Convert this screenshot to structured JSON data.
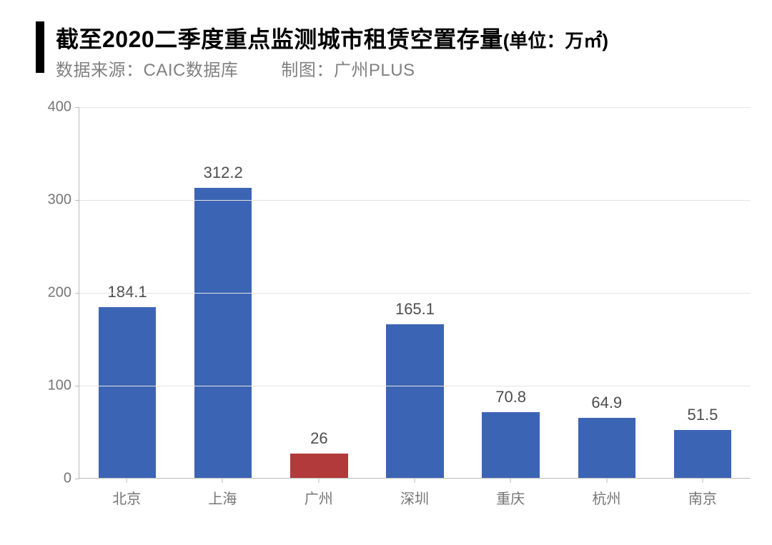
{
  "header": {
    "title_main": "截至2020二季度重点监测城市租赁空置存量",
    "title_unit": "(单位：万㎡)",
    "subtitle_source_label": "数据来源：",
    "subtitle_source_value": "CAIC数据库",
    "subtitle_credit_label": "制图：",
    "subtitle_credit_value": "广州PLUS",
    "bar_color": "#000000",
    "title_fontsize": 32,
    "subtitle_fontsize": 24,
    "subtitle_color": "#808080"
  },
  "chart": {
    "type": "bar",
    "categories": [
      "北京",
      "上海",
      "广州",
      "深圳",
      "重庆",
      "杭州",
      "南京"
    ],
    "values": [
      184.1,
      312.2,
      26,
      165.1,
      70.8,
      64.9,
      51.5
    ],
    "bar_colors": [
      "#3c64b4",
      "#3c64b4",
      "#b23a3a",
      "#3c64b4",
      "#3c64b4",
      "#3c64b4",
      "#3c64b4"
    ],
    "value_labels": [
      "184.1",
      "312.2",
      "26",
      "165.1",
      "70.8",
      "64.9",
      "51.5"
    ],
    "ylim": [
      0,
      400
    ],
    "ytick_step": 100,
    "yticks": [
      0,
      100,
      200,
      300,
      400
    ],
    "ytick_labels": [
      "0",
      "100",
      "200",
      "300",
      "400"
    ],
    "background_color": "#ffffff",
    "grid_color": "#e4e4e4",
    "axis_color": "#b8b8b8",
    "bar_width": 0.6,
    "label_color": "#757575",
    "value_label_color": "#4d4d4d",
    "label_fontsize": 20,
    "value_label_fontsize": 22
  }
}
